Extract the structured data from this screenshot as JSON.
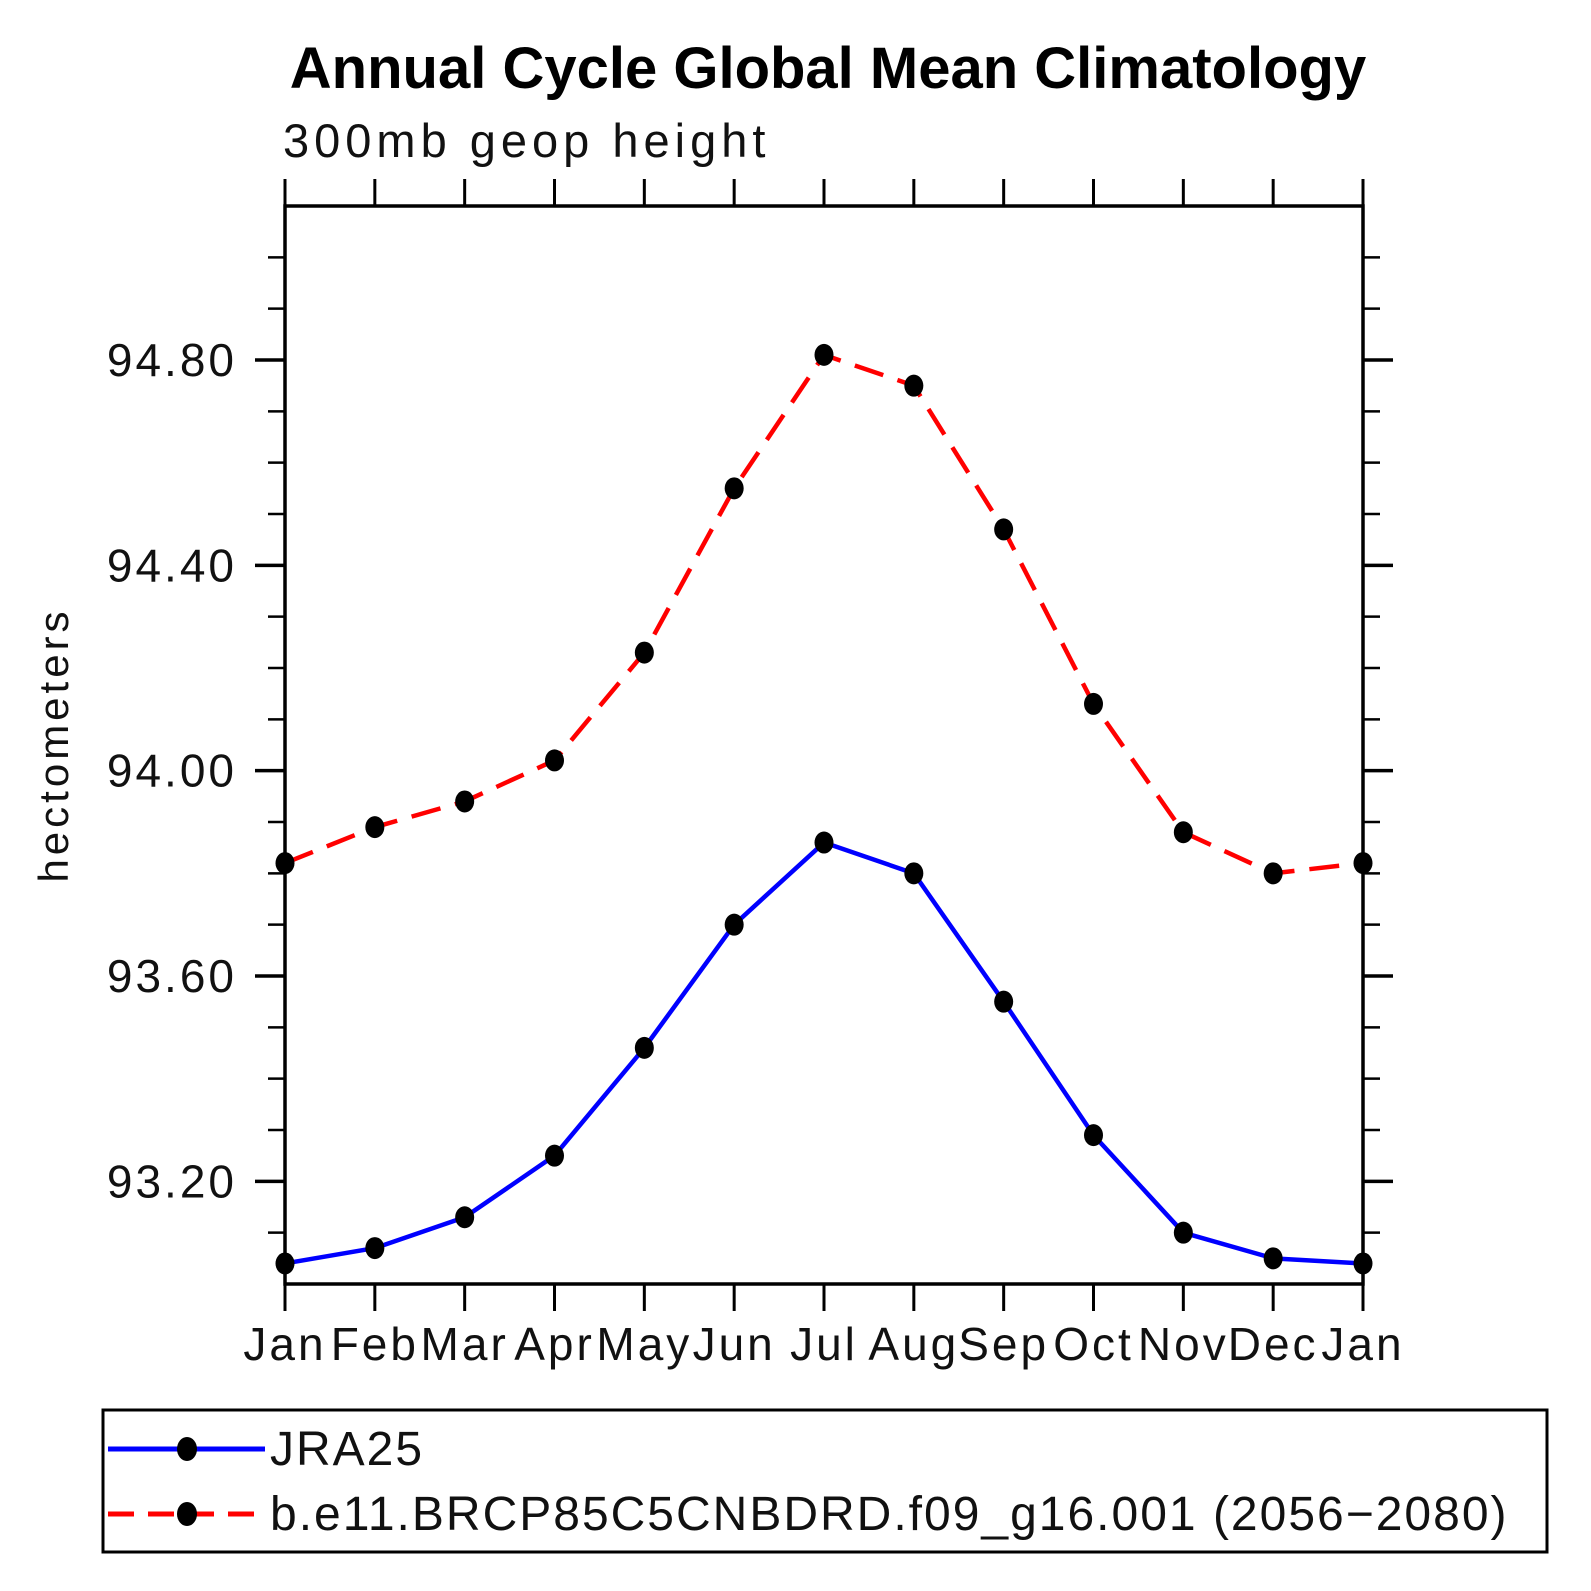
{
  "title": "Annual Cycle Global Mean Climatology",
  "subtitle": "300mb geop height",
  "y_axis": {
    "label": "hectometers",
    "tick_labels": [
      "93.20",
      "93.60",
      "94.00",
      "94.40",
      "94.80"
    ],
    "tick_values": [
      93.2,
      93.6,
      94.0,
      94.4,
      94.8
    ],
    "minor_step": 0.1,
    "min": 93.0,
    "max": 95.1
  },
  "x_axis": {
    "tick_labels": [
      "Jan",
      "Feb",
      "Mar",
      "Apr",
      "May",
      "Jun",
      "Jul",
      "Aug",
      "Sep",
      "Oct",
      "Nov",
      "Dec",
      "Jan"
    ]
  },
  "colors": {
    "jra25_line": "#0000ff",
    "model_line": "#ff0000",
    "marker": "#000000",
    "axis": "#000000"
  },
  "legend": {
    "entries": [
      {
        "label": "JRA25"
      },
      {
        "label": "b.e11.BRCP85C5CNBDRD.f09_g16.001 (2056−2080)"
      }
    ]
  },
  "chart_data": {
    "type": "line",
    "title": "Annual Cycle Global Mean Climatology",
    "subtitle": "300mb geop height",
    "ylabel": "hectometers",
    "xlabel": "",
    "x": [
      "Jan",
      "Feb",
      "Mar",
      "Apr",
      "May",
      "Jun",
      "Jul",
      "Aug",
      "Sep",
      "Oct",
      "Nov",
      "Dec",
      "Jan"
    ],
    "ylim": [
      93.0,
      95.1
    ],
    "grid": false,
    "legend_position": "bottom",
    "series": [
      {
        "name": "JRA25",
        "color": "#0000ff",
        "line_style": "solid",
        "marker": "filled-circle",
        "values": [
          93.04,
          93.07,
          93.13,
          93.25,
          93.46,
          93.7,
          93.86,
          93.8,
          93.55,
          93.29,
          93.1,
          93.05,
          93.04
        ]
      },
      {
        "name": "b.e11.BRCP85C5CNBDRD.f09_g16.001 (2056−2080)",
        "color": "#ff0000",
        "line_style": "dashed",
        "marker": "filled-circle",
        "values": [
          93.82,
          93.89,
          93.94,
          94.02,
          94.23,
          94.55,
          94.81,
          94.75,
          94.47,
          94.13,
          93.88,
          93.8,
          93.82
        ]
      }
    ]
  }
}
